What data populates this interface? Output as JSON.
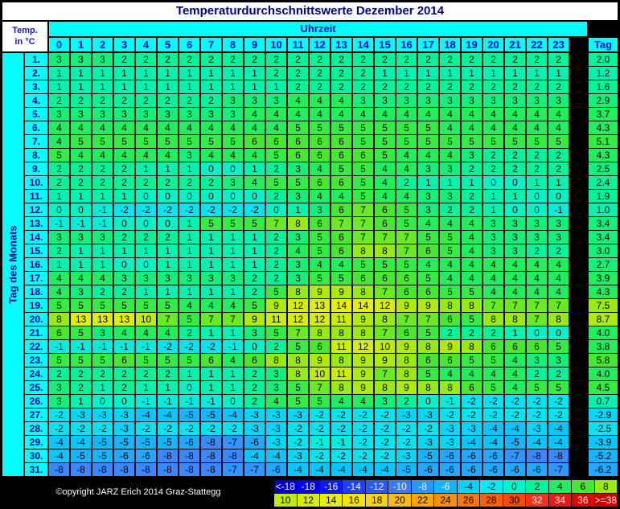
{
  "title": "Temperaturdurchschnittswerte Dezember 2014",
  "corner_label_line1": "Temp.",
  "corner_label_line2": "in °C",
  "uhrzeit_label": "Uhrzeit",
  "tag_label": "Tag",
  "side_label": "Tag des Monats",
  "copyright": "©opyright JARZ Erich 2014 Graz-Stattegg",
  "chart_data": {
    "type": "heatmap",
    "title": "Temperaturdurchschnittswerte Dezember 2014",
    "xlabel": "Uhrzeit",
    "ylabel": "Tag des Monats",
    "hours": [
      "0",
      "1",
      "2",
      "3",
      "4",
      "5",
      "6",
      "7",
      "8",
      "9",
      "10",
      "11",
      "12",
      "13",
      "14",
      "15",
      "16",
      "17",
      "18",
      "19",
      "20",
      "21",
      "22",
      "23"
    ],
    "days": [
      "1.",
      "2.",
      "3.",
      "4.",
      "5.",
      "6.",
      "7.",
      "8.",
      "9.",
      "10.",
      "11.",
      "12.",
      "13.",
      "14.",
      "15.",
      "16.",
      "17.",
      "18.",
      "19.",
      "20.",
      "21.",
      "22.",
      "23.",
      "24.",
      "25.",
      "26.",
      "27.",
      "28.",
      "29.",
      "30.",
      "31."
    ],
    "values": [
      [
        3,
        3,
        3,
        2,
        2,
        2,
        2,
        2,
        2,
        2,
        2,
        2,
        2,
        2,
        2,
        2,
        2,
        2,
        2,
        2,
        2,
        2,
        2,
        2
      ],
      [
        1,
        1,
        1,
        1,
        1,
        1,
        1,
        1,
        1,
        1,
        2,
        2,
        2,
        2,
        2,
        1,
        1,
        1,
        1,
        1,
        1,
        1,
        1,
        1
      ],
      [
        1,
        1,
        1,
        1,
        1,
        1,
        1,
        1,
        1,
        1,
        1,
        2,
        2,
        2,
        2,
        2,
        2,
        2,
        2,
        2,
        2,
        2,
        2,
        2
      ],
      [
        2,
        2,
        2,
        2,
        2,
        2,
        2,
        2,
        3,
        3,
        3,
        4,
        4,
        4,
        3,
        3,
        3,
        3,
        3,
        3,
        3,
        3,
        3,
        3
      ],
      [
        3,
        3,
        3,
        3,
        3,
        3,
        3,
        3,
        3,
        4,
        4,
        4,
        4,
        4,
        4,
        4,
        4,
        4,
        4,
        4,
        4,
        4,
        4,
        4
      ],
      [
        4,
        4,
        4,
        4,
        4,
        4,
        4,
        4,
        4,
        4,
        4,
        5,
        5,
        5,
        5,
        5,
        5,
        5,
        4,
        4,
        4,
        4,
        4,
        4
      ],
      [
        4,
        5,
        5,
        5,
        5,
        5,
        5,
        5,
        5,
        6,
        6,
        6,
        6,
        6,
        5,
        5,
        5,
        5,
        5,
        5,
        5,
        5,
        5,
        5
      ],
      [
        5,
        4,
        4,
        4,
        4,
        4,
        3,
        4,
        4,
        4,
        5,
        6,
        6,
        6,
        6,
        5,
        4,
        4,
        4,
        3,
        2,
        2,
        2,
        2
      ],
      [
        2,
        2,
        2,
        2,
        1,
        1,
        1,
        0,
        0,
        1,
        2,
        3,
        4,
        5,
        5,
        4,
        4,
        3,
        3,
        2,
        2,
        2,
        2,
        2
      ],
      [
        2,
        2,
        2,
        2,
        2,
        2,
        2,
        2,
        3,
        4,
        5,
        5,
        6,
        6,
        5,
        4,
        2,
        1,
        1,
        1,
        0,
        0,
        1,
        1
      ],
      [
        1,
        1,
        1,
        1,
        0,
        0,
        0,
        0,
        0,
        0,
        2,
        3,
        4,
        4,
        5,
        4,
        4,
        3,
        3,
        2,
        1,
        1,
        0,
        0
      ],
      [
        0,
        0,
        -1,
        -2,
        -2,
        -2,
        -2,
        -2,
        -2,
        -2,
        0,
        1,
        3,
        6,
        7,
        6,
        5,
        3,
        2,
        2,
        1,
        0,
        0,
        -1
      ],
      [
        -1,
        -1,
        -1,
        0,
        0,
        0,
        1,
        5,
        5,
        5,
        7,
        8,
        6,
        7,
        7,
        6,
        5,
        4,
        4,
        4,
        3,
        3,
        3,
        3
      ],
      [
        3,
        3,
        3,
        2,
        2,
        2,
        1,
        1,
        1,
        1,
        2,
        3,
        5,
        6,
        7,
        7,
        7,
        5,
        5,
        4,
        3,
        3,
        3,
        3
      ],
      [
        2,
        1,
        1,
        1,
        1,
        1,
        1,
        1,
        1,
        1,
        2,
        4,
        5,
        6,
        8,
        8,
        7,
        6,
        5,
        4,
        3,
        3,
        2,
        2
      ],
      [
        1,
        1,
        1,
        0,
        0,
        1,
        1,
        1,
        1,
        1,
        2,
        3,
        4,
        4,
        5,
        5,
        5,
        4,
        4,
        4,
        4,
        4,
        4,
        4
      ],
      [
        4,
        4,
        4,
        3,
        3,
        3,
        3,
        3,
        3,
        2,
        2,
        3,
        5,
        5,
        6,
        6,
        6,
        5,
        4,
        4,
        4,
        4,
        4,
        4
      ],
      [
        4,
        3,
        2,
        2,
        1,
        1,
        1,
        1,
        1,
        2,
        5,
        8,
        9,
        9,
        8,
        7,
        6,
        6,
        5,
        5,
        4,
        4,
        4,
        4
      ],
      [
        5,
        5,
        5,
        5,
        5,
        5,
        4,
        4,
        4,
        5,
        9,
        12,
        13,
        14,
        14,
        12,
        9,
        9,
        8,
        8,
        7,
        7,
        7,
        7
      ],
      [
        8,
        13,
        13,
        13,
        10,
        7,
        5,
        7,
        7,
        9,
        11,
        12,
        12,
        11,
        9,
        8,
        7,
        7,
        6,
        5,
        8,
        8,
        7,
        8
      ],
      [
        6,
        5,
        3,
        4,
        4,
        4,
        2,
        1,
        1,
        3,
        5,
        7,
        8,
        8,
        8,
        7,
        6,
        5,
        2,
        2,
        2,
        1,
        0,
        0
      ],
      [
        -1,
        -1,
        -1,
        -1,
        -1,
        -2,
        -2,
        -2,
        -1,
        0,
        2,
        5,
        6,
        11,
        12,
        10,
        9,
        8,
        9,
        8,
        6,
        6,
        6,
        5
      ],
      [
        5,
        5,
        5,
        6,
        5,
        5,
        5,
        6,
        4,
        6,
        8,
        8,
        9,
        8,
        9,
        9,
        8,
        6,
        6,
        5,
        5,
        4,
        3,
        3
      ],
      [
        2,
        2,
        2,
        2,
        2,
        2,
        1,
        1,
        1,
        2,
        3,
        8,
        10,
        11,
        9,
        7,
        8,
        5,
        4,
        4,
        4,
        4,
        2,
        2
      ],
      [
        3,
        2,
        1,
        2,
        1,
        1,
        0,
        1,
        1,
        2,
        3,
        5,
        7,
        8,
        9,
        8,
        9,
        8,
        8,
        6,
        5,
        4,
        5,
        5
      ],
      [
        3,
        1,
        0,
        0,
        -1,
        -1,
        -1,
        -1,
        0,
        2,
        4,
        5,
        5,
        4,
        4,
        3,
        2,
        0,
        -1,
        -2,
        -2,
        -2,
        -2,
        -2
      ],
      [
        -2,
        -3,
        -3,
        -3,
        -4,
        -4,
        -5,
        -5,
        -4,
        -3,
        -3,
        -3,
        -2,
        -2,
        -2,
        -2,
        -3,
        -3,
        -2,
        -2,
        -2,
        -2,
        -2,
        -2
      ],
      [
        -2,
        -2,
        -2,
        -3,
        -2,
        -2,
        -2,
        -2,
        -2,
        -3,
        -3,
        -2,
        -2,
        -2,
        -2,
        -2,
        -2,
        -2,
        -3,
        -3,
        -4,
        -4,
        -3,
        -4
      ],
      [
        -4,
        -4,
        -5,
        -5,
        -5,
        -5,
        -6,
        -8,
        -7,
        -6,
        -3,
        -2,
        -1,
        -1,
        -2,
        -2,
        -2,
        -3,
        -3,
        -4,
        -4,
        -5,
        -4,
        -4
      ],
      [
        -4,
        -5,
        -5,
        -6,
        -6,
        -8,
        -8,
        -8,
        -8,
        -4,
        -4,
        -3,
        -2,
        -2,
        -2,
        -2,
        -3,
        -5,
        -6,
        -6,
        -6,
        -7,
        -8,
        -8
      ],
      [
        -8,
        -8,
        -8,
        -8,
        -8,
        -8,
        -8,
        -8,
        -7,
        -7,
        -6,
        -4,
        -4,
        -4,
        -4,
        -4,
        -5,
        -6,
        -6,
        -6,
        -6,
        -6,
        -6,
        -7
      ]
    ],
    "daily_average": [
      "2.0",
      "1.2",
      "1.6",
      "2.9",
      "3.7",
      "4.3",
      "5.1",
      "4.3",
      "2.5",
      "2.4",
      "1.9",
      "1.0",
      "3.4",
      "3.4",
      "3.0",
      "2.7",
      "3.9",
      "4.3",
      "7.5",
      "8.7",
      "4.0",
      "3.8",
      "5.8",
      "4.0",
      "4.5",
      "0.7",
      "-2.9",
      "-2.5",
      "-3.9",
      "-5.2",
      "-6.2"
    ],
    "legend": {
      "row1": [
        "<-18",
        "-18",
        "-16",
        "-14",
        "-12",
        "-10",
        "-8",
        "-6",
        "-4",
        "-2",
        "0",
        "2",
        "4",
        "6",
        "8"
      ],
      "row2": [
        "10",
        "12",
        "14",
        "16",
        "18",
        "20",
        "22",
        "24",
        "26",
        "28",
        "30",
        "32",
        "34",
        "36",
        ">=38"
      ]
    },
    "legend_colors": {
      "row1": [
        "#0000cd",
        "#0000ff",
        "#0a1aff",
        "#1e40ff",
        "#2a5aff",
        "#3a78ff",
        "#2a95ff",
        "#14b4ff",
        "#00d4ff",
        "#00ecf2",
        "#00f4c8",
        "#00f49a",
        "#20ee60",
        "#48e830",
        "#98ea10"
      ],
      "row2": [
        "#c0ec00",
        "#d8ee00",
        "#e8f000",
        "#f4e400",
        "#f8d400",
        "#fcc000",
        "#fca800",
        "#fc9000",
        "#fc7800",
        "#fc6000",
        "#fc4800",
        "#f43020",
        "#ec1818",
        "#e00000",
        "#cc0000"
      ]
    },
    "cell_colors": {
      "-8": "#3a88ff",
      "-7": "#3096ff",
      "-6": "#22a8ff",
      "-5": "#14b6ff",
      "-4": "#06c8ff",
      "-3": "#00d8fa",
      "-2": "#00e6f0",
      "-1": "#00eedc",
      "0": "#00f4c8",
      "1": "#00f4b0",
      "2": "#00f49a",
      "3": "#10f07a",
      "4": "#20ee5c",
      "5": "#34ec44",
      "6": "#48e830",
      "7": "#6aea20",
      "8": "#98ea10",
      "9": "#aeeb08",
      "10": "#c0ec00",
      "11": "#ccee00",
      "12": "#d8ee00",
      "13": "#e0ef00",
      "14": "#e8f000"
    }
  }
}
